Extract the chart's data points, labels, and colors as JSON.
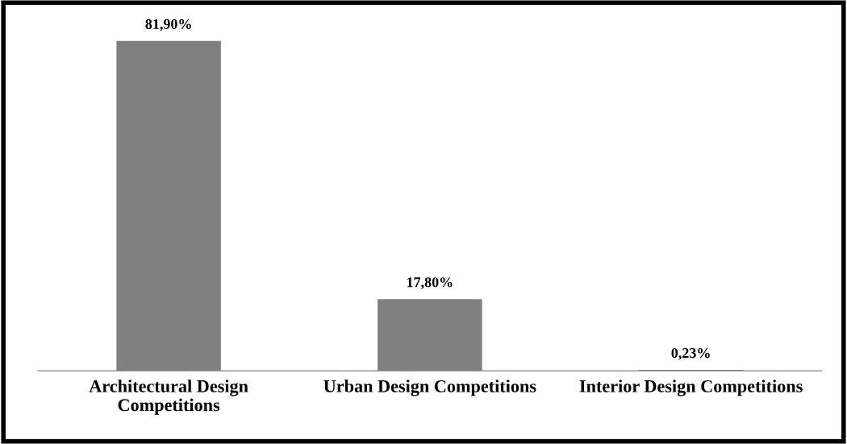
{
  "chart_data": {
    "type": "bar",
    "categories": [
      "Architectural Design\nCompetitions",
      "Urban Design Competitions",
      "Interior Design Competitions"
    ],
    "values": [
      81.9,
      17.8,
      0.23
    ],
    "value_labels": [
      "81,90%",
      "17,80%",
      "0,23%"
    ],
    "color": "#808080",
    "grid": false,
    "legend": false
  }
}
